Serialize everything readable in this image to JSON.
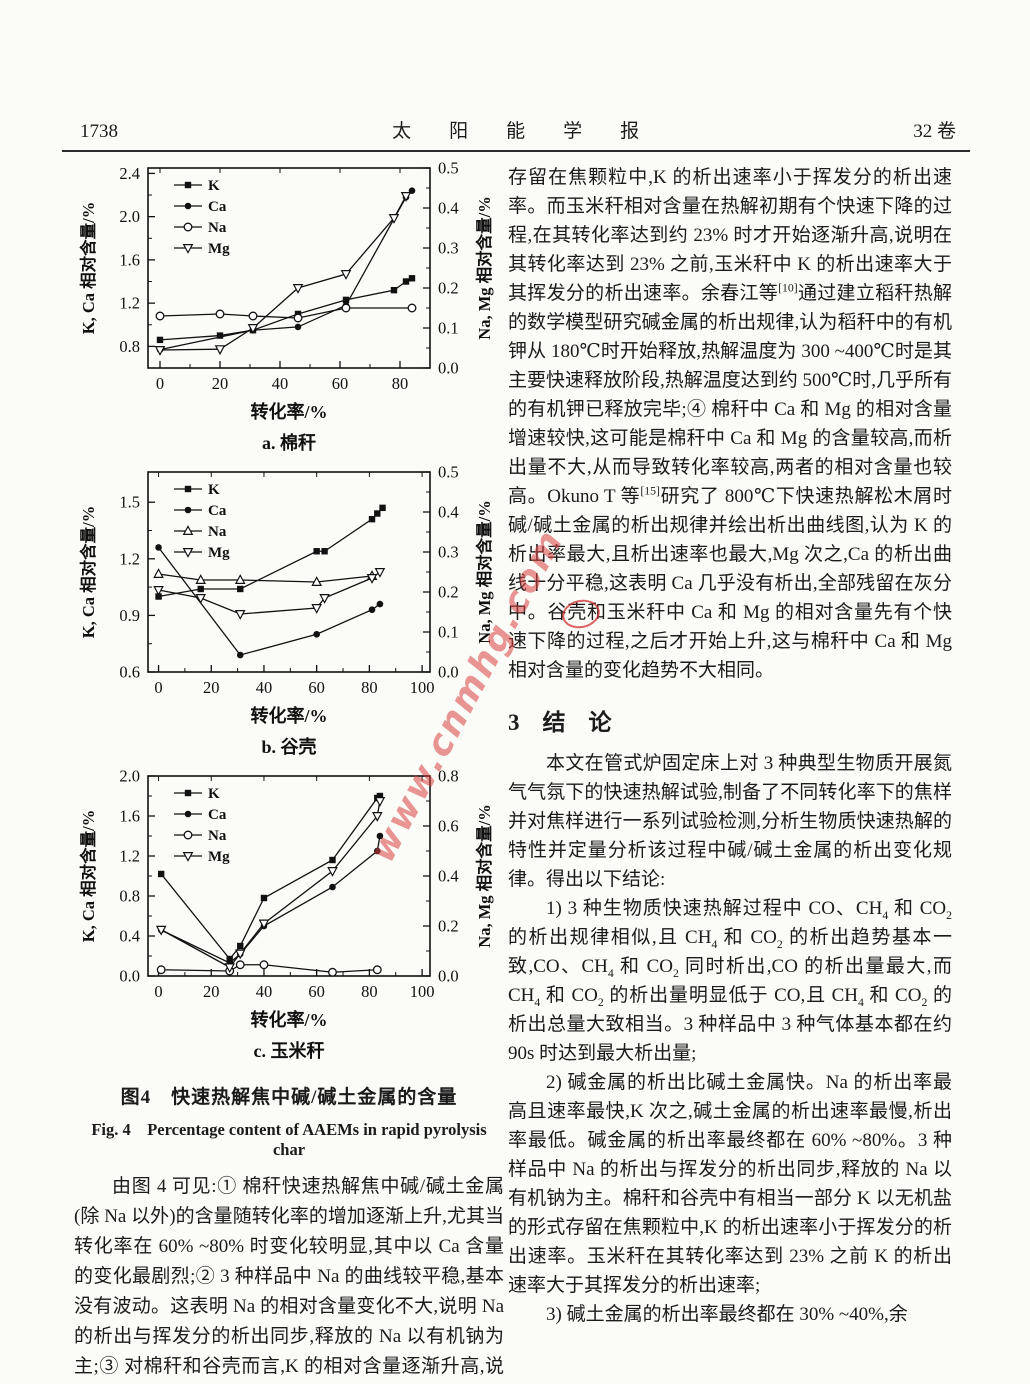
{
  "header": {
    "page_number": "1738",
    "journal_title": "太　　阳　　能　　学　　报",
    "volume": "32 卷"
  },
  "watermark": {
    "text": "www.cnmhg.com",
    "color": "#d94040"
  },
  "figure_caption": {
    "zh": "图4　快速热解焦中碱/碱土金属的含量",
    "en": "Fig. 4　Percentage content of AAEMs in rapid pyrolysis char"
  },
  "left_column": {
    "paragraph": "由图 4 可见:① 棉秆快速热解焦中碱/碱土金属(除 Na 以外)的含量随转化率的增加逐渐上升,尤其当转化率在 60% ~80% 时变化较明显,其中以 Ca 含量的变化最剧烈;② 3 种样品中 Na 的曲线较平稳,基本没有波动。这表明 Na 的相对含量变化不大,说明 Na 的析出与挥发分的析出同步,释放的 Na 以有机钠为主;③ 对棉秆和谷壳而言,K 的相对含量逐渐升高,说明有相当一部分 K 以无机盐的形式"
  },
  "right_column": {
    "p1": "存留在焦颗粒中,K 的析出速率小于挥发分的析出速率。而玉米秆相对含量在热解初期有个快速下降的过程,在其转化率达到约 23% 时才开始逐渐升高,说明在其转化率达到 23% 之前,玉米秆中 K 的析出速率大于其挥发分的析出速率。余春江等^[10]^通过建立稻秆热解的数学模型研究碱金属的析出规律,认为稻秆中的有机钾从 180℃时开始释放,热解温度为 300 ~400℃时是其主要快速释放阶段,热解温度达到约 500℃时,几乎所有的有机钾已释放完毕;④ 棉秆中 Ca 和 Mg 的相对含量增速较快,这可能是棉秆中 Ca 和 Mg 的含量较高,而析出量不大,从而导致转化率较高,两者的相对含量也较高。Okuno T 等^[15]^研究了 800℃下快速热解松木屑时碱/碱土金属的析出规律并绘出析出曲线图,认为 K 的析出率最大,且析出速率也最大,Mg 次之,Ca 的析出曲线十分平稳,这表明 Ca 几乎没有析出,全部残留在灰分中。谷壳和玉米秆中 Ca 和 Mg 的相对含量先有个快速下降的过程,之后才开始上升,这与棉秆中 Ca 和 Mg 相对含量的变化趋势不大相同。",
    "section_heading": "3　结　论",
    "intro": "本文在管式炉固定床上对 3 种典型生物质开展氮气气氛下的快速热解试验,制备了不同转化率下的焦样并对焦样进行一系列试验检测,分析生物质快速热解的特性并定量分析该过程中碱/碱土金属的析出变化规律。得出以下结论:",
    "items": [
      "1) 3 种生物质快速热解过程中 CO、CH~4~ 和 CO~2~ 的析出规律相似,且 CH~4~ 和 CO~2~ 的析出趋势基本一致,CO、CH~4~ 和 CO~2~ 同时析出,CO 的析出量最大,而 CH~4~ 和 CO~2~ 的析出量明显低于 CO,且 CH~4~ 和 CO~2~ 的析出总量大致相当。3 种样品中 3 种气体基本都在约 90s 时达到最大析出量;",
      "2) 碱金属的析出比碱土金属快。Na 的析出率最高且速率最快,K 次之,碱土金属的析出速率最慢,析出率最低。碱金属的析出率最终都在 60% ~80%。3 种样品中 Na 的析出与挥发分的析出同步,释放的 Na 以有机钠为主。棉秆和谷壳中有相当一部分 K 以无机盐的形式存留在焦颗粒中,K 的析出速率小于挥发分的析出速率。玉米秆在其转化率达到 23% 之前 K 的析出速率大于其挥发分的析出速率;",
      "3) 碱土金属的析出率最终都在 30% ~40%,余"
    ]
  },
  "chart_data": [
    {
      "type": "line",
      "title": "a. 棉秆",
      "xlabel": "转化率/%",
      "ylabel_left": "K, Ca 相对含量/%",
      "ylabel_right": "Na, Mg 相对含量/%",
      "xlim": [
        -4,
        90
      ],
      "xticks": [
        "0",
        "20",
        "40",
        "60",
        "80"
      ],
      "ylim_left": [
        0.6,
        2.45
      ],
      "yticks_left": [
        "0.8",
        "1.2",
        "1.6",
        "2.0",
        "2.4"
      ],
      "ylim_right": [
        0,
        0.5
      ],
      "yticks_right": [
        "0.0",
        "0.1",
        "0.2",
        "0.3",
        "0.4",
        "0.5"
      ],
      "legend_position": "top-left",
      "grid": false,
      "series": [
        {
          "name": "K",
          "axis": "left",
          "marker": "square-filled",
          "points": [
            [
              0,
              0.86
            ],
            [
              20,
              0.9
            ],
            [
              31,
              0.95
            ],
            [
              46,
              1.1
            ],
            [
              62,
              1.23
            ],
            [
              78,
              1.32
            ],
            [
              82,
              1.4
            ],
            [
              84,
              1.43
            ]
          ]
        },
        {
          "name": "Ca",
          "axis": "left",
          "marker": "circle-filled",
          "points": [
            [
              0,
              0.77
            ],
            [
              31,
              0.95
            ],
            [
              46,
              0.98
            ],
            [
              62,
              1.18
            ],
            [
              82,
              2.18
            ],
            [
              84,
              2.24
            ]
          ]
        },
        {
          "name": "Na",
          "axis": "right",
          "marker": "circle-open",
          "points": [
            [
              0,
              0.13
            ],
            [
              20,
              0.135
            ],
            [
              31,
              0.13
            ],
            [
              46,
              0.125
            ],
            [
              62,
              0.15
            ],
            [
              84,
              0.15
            ]
          ]
        },
        {
          "name": "Mg",
          "axis": "right",
          "marker": "triangle-down-open",
          "points": [
            [
              0,
              0.045
            ],
            [
              20,
              0.047
            ],
            [
              31,
              0.1
            ],
            [
              46,
              0.2
            ],
            [
              62,
              0.235
            ],
            [
              78,
              0.375
            ],
            [
              82,
              0.43
            ]
          ]
        }
      ]
    },
    {
      "type": "line",
      "title": "b. 谷壳",
      "xlabel": "转化率/%",
      "ylabel_left": "K, Ca 相对含量/%",
      "ylabel_right": "Na, Mg 相对含量/%",
      "xlim": [
        -4,
        103
      ],
      "xticks": [
        "0",
        "20",
        "40",
        "60",
        "80",
        "100"
      ],
      "ylim_left": [
        0.6,
        1.66
      ],
      "yticks_left": [
        "0.6",
        "0.9",
        "1.2",
        "1.5"
      ],
      "ylim_right": [
        0,
        0.5
      ],
      "yticks_right": [
        "0.0",
        "0.1",
        "0.2",
        "0.3",
        "0.4",
        "0.5"
      ],
      "legend_position": "top-left",
      "grid": false,
      "series": [
        {
          "name": "K",
          "axis": "left",
          "marker": "square-filled",
          "points": [
            [
              0,
              1.0
            ],
            [
              16,
              1.04
            ],
            [
              31,
              1.04
            ],
            [
              60,
              1.24
            ],
            [
              63,
              1.24
            ],
            [
              81,
              1.41
            ],
            [
              83,
              1.44
            ],
            [
              85,
              1.47
            ]
          ]
        },
        {
          "name": "Ca",
          "axis": "left",
          "marker": "circle-filled",
          "points": [
            [
              0,
              1.26
            ],
            [
              31,
              0.69
            ],
            [
              60,
              0.8
            ],
            [
              81,
              0.93
            ],
            [
              84,
              0.96
            ]
          ]
        },
        {
          "name": "Na",
          "axis": "right",
          "marker": "triangle-up-open",
          "points": [
            [
              0,
              0.245
            ],
            [
              16,
              0.23
            ],
            [
              31,
              0.23
            ],
            [
              60,
              0.225
            ],
            [
              81,
              0.24
            ]
          ]
        },
        {
          "name": "Mg",
          "axis": "right",
          "marker": "triangle-down-open",
          "points": [
            [
              0,
              0.205
            ],
            [
              16,
              0.185
            ],
            [
              31,
              0.145
            ],
            [
              60,
              0.16
            ],
            [
              63,
              0.185
            ],
            [
              81,
              0.235
            ],
            [
              84,
              0.25
            ]
          ]
        }
      ]
    },
    {
      "type": "line",
      "title": "c. 玉米秆",
      "xlabel": "转化率/%",
      "ylabel_left": "K, Ca 相对含量/%",
      "ylabel_right": "Na, Mg 相对含量/%",
      "xlim": [
        -4,
        103
      ],
      "xticks": [
        "0",
        "20",
        "40",
        "60",
        "80",
        "100"
      ],
      "ylim_left": [
        0,
        2.0
      ],
      "yticks_left": [
        "0.0",
        "0.4",
        "0.8",
        "1.2",
        "1.6",
        "2.0"
      ],
      "ylim_right": [
        0,
        0.8
      ],
      "yticks_right": [
        "0.0",
        "0.2",
        "0.4",
        "0.6",
        "0.8"
      ],
      "legend_position": "top-left",
      "grid": false,
      "series": [
        {
          "name": "K",
          "axis": "left",
          "marker": "square-filled",
          "points": [
            [
              1,
              1.02
            ],
            [
              27,
              0.17
            ],
            [
              31,
              0.3
            ],
            [
              40,
              0.78
            ],
            [
              66,
              1.16
            ],
            [
              83,
              1.78
            ],
            [
              84,
              1.8
            ]
          ]
        },
        {
          "name": "Ca",
          "axis": "left",
          "marker": "circle-filled",
          "points": [
            [
              1,
              0.46
            ],
            [
              27,
              0.13
            ],
            [
              31,
              0.22
            ],
            [
              40,
              0.5
            ],
            [
              66,
              0.89
            ],
            [
              83,
              1.25
            ],
            [
              84,
              1.4
            ]
          ]
        },
        {
          "name": "Na",
          "axis": "right",
          "marker": "circle-open",
          "points": [
            [
              1,
              0.025
            ],
            [
              27,
              0.02
            ],
            [
              31,
              0.045
            ],
            [
              40,
              0.045
            ],
            [
              66,
              0.015
            ],
            [
              83,
              0.025
            ]
          ]
        },
        {
          "name": "Mg",
          "axis": "right",
          "marker": "triangle-down-open",
          "points": [
            [
              1,
              0.185
            ],
            [
              27,
              0.035
            ],
            [
              31,
              0.09
            ],
            [
              40,
              0.21
            ],
            [
              66,
              0.42
            ],
            [
              83,
              0.64
            ],
            [
              84,
              0.7
            ]
          ]
        }
      ]
    }
  ]
}
